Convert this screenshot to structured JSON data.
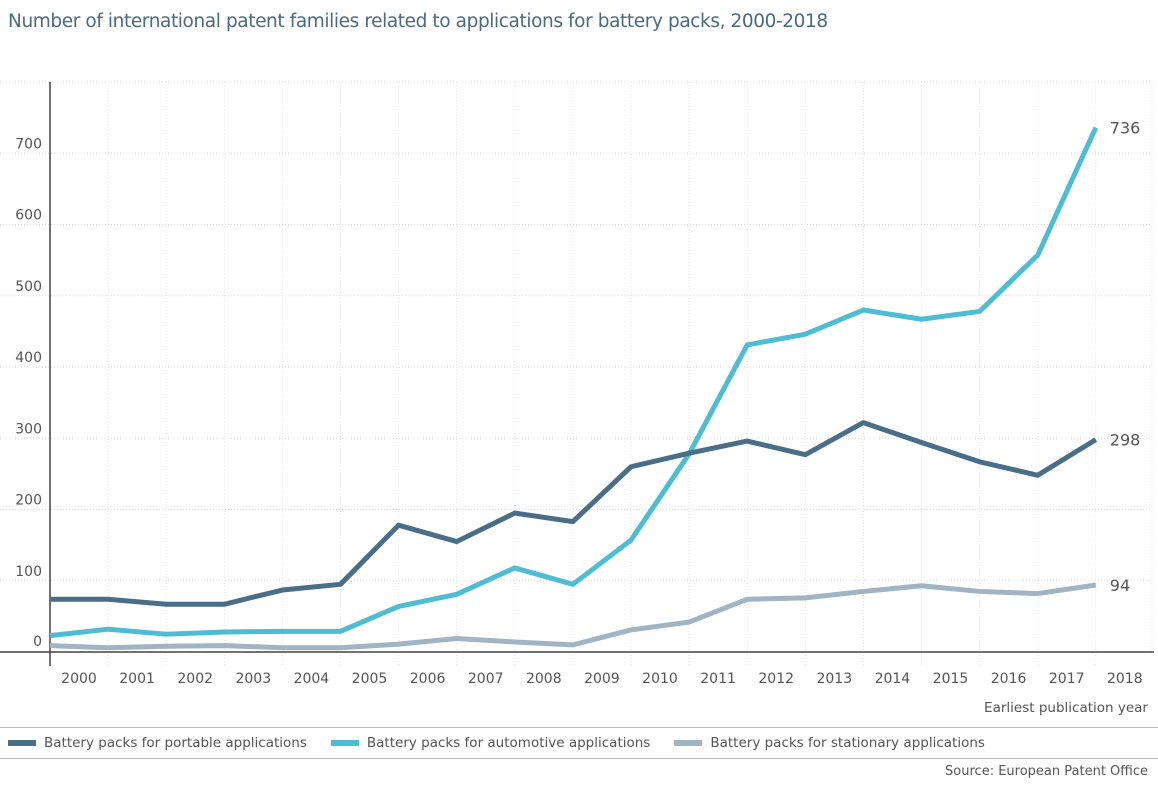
{
  "chart_data": {
    "type": "line",
    "title": "Number of international patent families related to applications for battery packs, 2000-2018",
    "xlabel": "Earliest publication year",
    "ylabel": "",
    "ylim": [
      0,
      800
    ],
    "yticks": [
      0,
      100,
      200,
      300,
      400,
      500,
      600,
      700
    ],
    "grid": true,
    "legend_position": "bottom",
    "x": [
      "2000",
      "2001",
      "2002",
      "2003",
      "2004",
      "2005",
      "2006",
      "2007",
      "2008",
      "2009",
      "2010",
      "2011",
      "2012",
      "2013",
      "2014",
      "2015",
      "2016",
      "2017",
      "2018"
    ],
    "series": [
      {
        "name": "Battery packs for portable applications",
        "color": "#4a6e88",
        "values": [
          74,
          74,
          67,
          67,
          87,
          95,
          178,
          155,
          195,
          183,
          260,
          279,
          296,
          277,
          322,
          294,
          267,
          248,
          298
        ],
        "end_label": "298"
      },
      {
        "name": "Battery packs for automotive applications",
        "color": "#4ebcd3",
        "values": [
          23,
          32,
          25,
          28,
          29,
          29,
          64,
          81,
          118,
          95,
          157,
          278,
          431,
          446,
          480,
          467,
          478,
          557,
          736
        ],
        "end_label": "736"
      },
      {
        "name": "Battery packs for stationary applications",
        "color": "#a0b4c4",
        "values": [
          9,
          6,
          8,
          9,
          6,
          6,
          11,
          19,
          14,
          10,
          31,
          42,
          74,
          76,
          85,
          93,
          85,
          82,
          94
        ],
        "end_label": "94"
      }
    ],
    "source": "Source: European Patent Office"
  }
}
